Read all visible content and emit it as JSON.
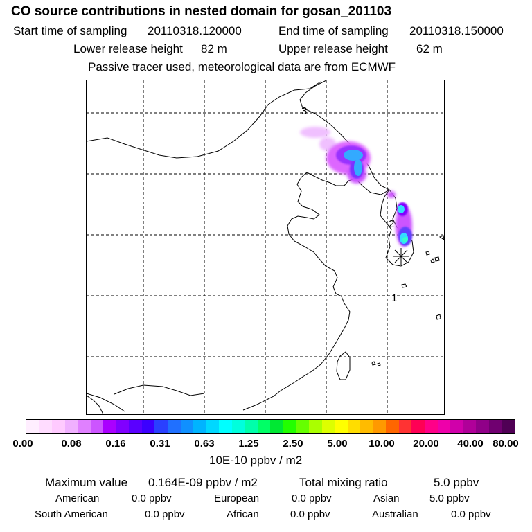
{
  "title": "CO  source contributions in nested domain for gosan_201103",
  "sampling": {
    "start_label": "Start time of sampling",
    "start_value": "20110318.120000",
    "end_label": "End time of sampling",
    "end_value": "20110318.150000"
  },
  "release": {
    "lower_label": "Lower release height",
    "lower_value": "82 m",
    "upper_label": "Upper release height",
    "upper_value": "62 m"
  },
  "tracer_note": "Passive tracer used, meteorological data are from ECMWF",
  "map": {
    "region": "East Asia (China, Korea, Japan, Taiwan)",
    "trajectory_labels": [
      "1",
      "2",
      "3"
    ],
    "receptor": "gosan",
    "receptor_marker": "star-marker",
    "colors": {
      "coast": "#000000",
      "grid": "#000000",
      "plume_outer": "#dd66ff",
      "plume_mid": "#9933ff",
      "plume_core": "#33aaff",
      "plume_peak": "#33ffcc"
    }
  },
  "colorbar": {
    "colors": [
      "#ffeeff",
      "#ffdcff",
      "#ffcaff",
      "#f0b0ff",
      "#e080ff",
      "#cc55ff",
      "#aa00ff",
      "#8000ff",
      "#5a00ff",
      "#3c00ff",
      "#2a40ff",
      "#2070ff",
      "#1090ff",
      "#00b4ff",
      "#00d8ff",
      "#00ffff",
      "#00ffdd",
      "#00ffaa",
      "#00ff66",
      "#00e833",
      "#22ff00",
      "#66ff00",
      "#aaff00",
      "#ddff00",
      "#ffff00",
      "#ffdd00",
      "#ffbb00",
      "#ff9900",
      "#ff6600",
      "#ff3333",
      "#ff0055",
      "#ff0088",
      "#ee00aa",
      "#d000aa",
      "#b00099",
      "#900088",
      "#700070",
      "#500055"
    ],
    "ticks": [
      "0.00",
      "0.08",
      "0.16",
      "0.31",
      "0.63",
      "1.25",
      "2.50",
      "5.00",
      "10.00",
      "20.00",
      "40.00",
      "80.00"
    ],
    "unit": "10E-10 ppbv / m2"
  },
  "stats": {
    "max_label": "Maximum value",
    "max_value": "0.164E-09 ppbv / m2",
    "total_label": "Total mixing ratio",
    "total_value": "5.0 ppbv",
    "regions": [
      {
        "name": "American",
        "value": "0.0 ppbv"
      },
      {
        "name": "European",
        "value": "0.0 ppbv"
      },
      {
        "name": "Asian",
        "value": "5.0 ppbv"
      },
      {
        "name": "South American",
        "value": "0.0 ppbv"
      },
      {
        "name": "African",
        "value": "0.0 ppbv"
      },
      {
        "name": "Australian",
        "value": "0.0 ppbv"
      }
    ]
  }
}
